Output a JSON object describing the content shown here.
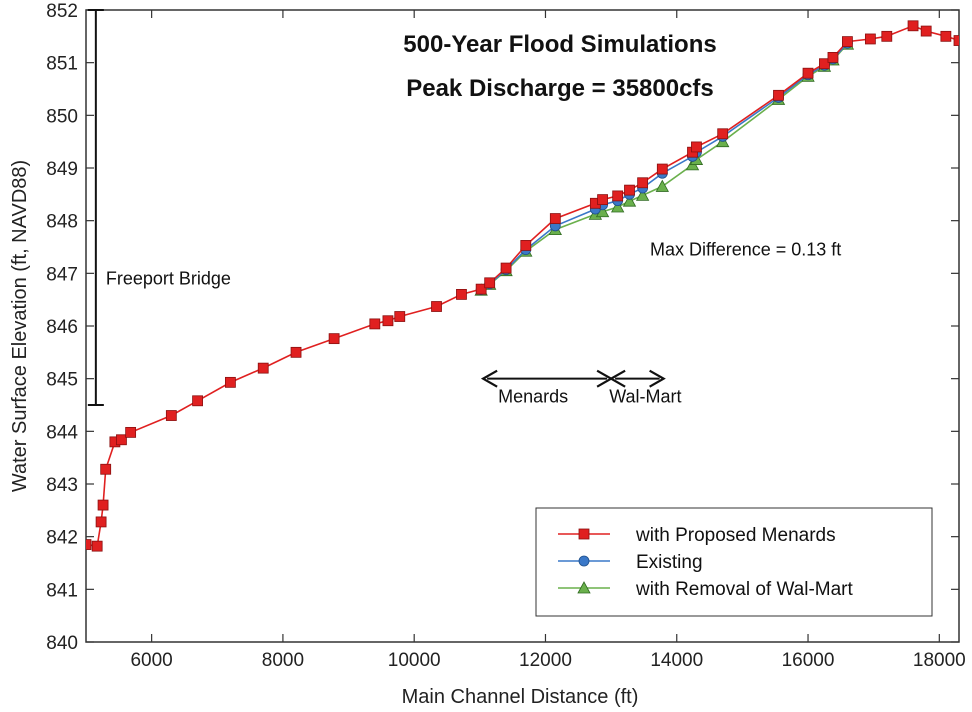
{
  "chart_data": {
    "type": "line",
    "title": "500-Year Flood Simulations",
    "subtitle": "Peak Discharge = 35800cfs",
    "xlabel": "Main Channel Distance (ft)",
    "ylabel": "Water Surface Elevation (ft, NAVD88)",
    "xlim": [
      5000,
      18300
    ],
    "ylim": [
      840,
      852
    ],
    "xticks": [
      6000,
      8000,
      10000,
      12000,
      14000,
      16000,
      18000
    ],
    "yticks": [
      840,
      841,
      842,
      843,
      844,
      845,
      846,
      847,
      848,
      849,
      850,
      851,
      852
    ],
    "grid": false,
    "legend": "bottom-right",
    "series": [
      {
        "name": "with Proposed Menards",
        "color": "#e02020",
        "marker": "square",
        "x": [
          5000,
          5170,
          5230,
          5260,
          5300,
          5440,
          5540,
          5680,
          6300,
          6700,
          7200,
          7700,
          8200,
          8780,
          9400,
          9600,
          9780,
          10340,
          10720,
          11020,
          11150,
          11400,
          11700,
          12150,
          12760,
          12870,
          13100,
          13280,
          13480,
          13780,
          14240,
          14300,
          14700,
          15550,
          16000,
          16250,
          16380,
          16600,
          16950,
          17200,
          17600,
          17800,
          18100,
          18300
        ],
        "y": [
          841.85,
          841.82,
          842.28,
          842.6,
          843.28,
          843.8,
          843.84,
          843.98,
          844.3,
          844.58,
          844.93,
          845.2,
          845.5,
          845.76,
          846.04,
          846.1,
          846.18,
          846.37,
          846.6,
          846.7,
          846.82,
          847.1,
          847.53,
          848.04,
          848.33,
          848.4,
          848.47,
          848.58,
          848.72,
          848.98,
          849.3,
          849.4,
          849.65,
          850.38,
          850.8,
          850.98,
          851.1,
          851.4,
          851.45,
          851.5,
          851.7,
          851.6,
          851.5,
          851.42
        ]
      },
      {
        "name": "Existing",
        "color": "#3a78c8",
        "marker": "circle",
        "x": [
          11020,
          11150,
          11400,
          11700,
          12150,
          12760,
          12870,
          13100,
          13280,
          13480,
          13780,
          14240,
          14300,
          14700,
          15550,
          16000,
          16250,
          16380,
          16600
        ],
        "y": [
          846.69,
          846.8,
          847.07,
          847.45,
          847.9,
          848.22,
          848.3,
          848.38,
          848.5,
          848.62,
          848.9,
          849.22,
          849.3,
          849.6,
          850.34,
          850.77,
          850.95,
          851.07,
          851.37
        ]
      },
      {
        "name": "with Removal of Wal-Mart",
        "color": "#6ab04c",
        "marker": "triangle",
        "x": [
          11020,
          11150,
          11400,
          11700,
          12150,
          12760,
          12870,
          13100,
          13280,
          13480,
          13780,
          14240,
          14300,
          14700,
          15550,
          16000,
          16250,
          16380,
          16600
        ],
        "y": [
          846.68,
          846.79,
          847.05,
          847.42,
          847.83,
          848.12,
          848.17,
          848.26,
          848.37,
          848.48,
          848.65,
          849.06,
          849.16,
          849.5,
          850.3,
          850.74,
          850.93,
          851.05,
          851.35
        ]
      }
    ],
    "annotations": [
      {
        "text": "Freeport Bridge",
        "x": 5150,
        "y_top": 852,
        "y_bottom": 844.5
      },
      {
        "text": "Max Difference = 0.13 ft",
        "x": 15050,
        "y": 847.45
      },
      {
        "text": "Menards",
        "x_start": 11050,
        "x_end": 13000,
        "y": 845
      },
      {
        "text": "Wal-Mart",
        "x_start": 13000,
        "x_end": 13800,
        "y": 845
      }
    ]
  }
}
